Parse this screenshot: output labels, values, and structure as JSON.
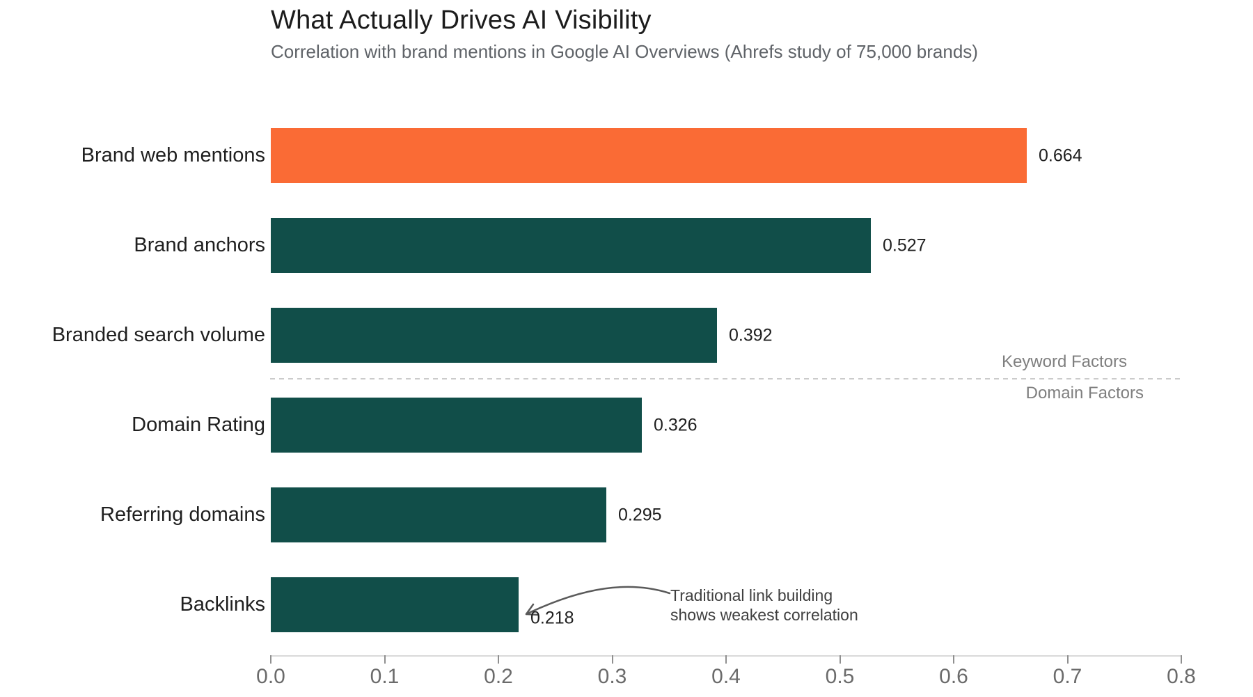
{
  "chart": {
    "title": "What Actually Drives AI Visibility",
    "subtitle": "Correlation with brand mentions in Google AI Overviews (Ahrefs study of 75,000 brands)"
  },
  "chart_data": {
    "type": "bar",
    "orientation": "horizontal",
    "title": "What Actually Drives AI Visibility",
    "subtitle": "Correlation with brand mentions in Google AI Overviews (Ahrefs study of 75,000 brands)",
    "categories": [
      "Brand web mentions",
      "Brand anchors",
      "Branded search volume",
      "Domain Rating",
      "Referring domains",
      "Backlinks"
    ],
    "values": [
      0.664,
      0.527,
      0.392,
      0.326,
      0.295,
      0.218
    ],
    "value_labels": [
      "0.664",
      "0.527",
      "0.392",
      "0.326",
      "0.295",
      "0.218"
    ],
    "bar_colors": [
      "#fa6b35",
      "#114e49",
      "#114e49",
      "#114e49",
      "#114e49",
      "#114e49"
    ],
    "highlight_color": "#fa6b35",
    "base_color": "#114e49",
    "xlabel": "",
    "ylabel": "",
    "xlim": [
      0,
      0.8
    ],
    "x_ticks": [
      "0.0",
      "0.1",
      "0.2",
      "0.3",
      "0.4",
      "0.5",
      "0.6",
      "0.7",
      "0.8"
    ],
    "grid": false,
    "divider": {
      "after_category": "Branded search volume",
      "above_label": "Keyword Factors",
      "below_label": "Domain Factors"
    },
    "annotation": {
      "lines": [
        "Traditional link building",
        "shows weakest correlation"
      ],
      "target_category": "Backlinks",
      "target_value": "0.218"
    },
    "colors": {
      "title_text": "#1c1c1c",
      "subtitle_text": "#5f6368",
      "category_text": "#1f1f1f",
      "value_text": "#1f1f1f",
      "tick_text": "#6b6b6b",
      "factor_text": "#7f7f7f",
      "annotation_text": "#404040",
      "axis_line": "#d9d9d9",
      "divider_line": "#cbcbcb",
      "arrow": "#5a5a5a"
    }
  }
}
